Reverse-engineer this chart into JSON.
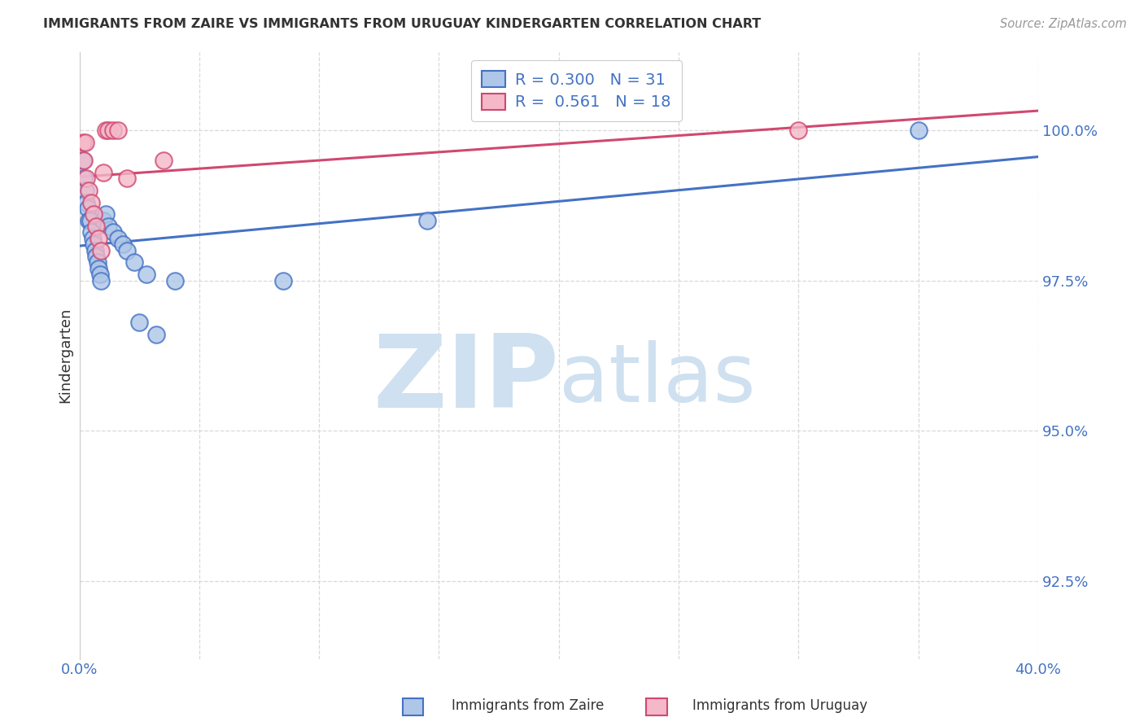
{
  "title": "IMMIGRANTS FROM ZAIRE VS IMMIGRANTS FROM URUGUAY KINDERGARTEN CORRELATION CHART",
  "source": "Source: ZipAtlas.com",
  "ylabel": "Kindergarten",
  "yticks": [
    92.5,
    95.0,
    97.5,
    100.0
  ],
  "ytick_labels": [
    "92.5%",
    "95.0%",
    "97.5%",
    "100.0%"
  ],
  "xmin": 0.0,
  "xmax": 40.0,
  "ymin": 91.2,
  "ymax": 101.3,
  "legend_blue_R": "0.300",
  "legend_blue_N": "31",
  "legend_pink_R": "0.561",
  "legend_pink_N": "18",
  "blue_fill": "#aec6e8",
  "blue_edge": "#4472c4",
  "pink_fill": "#f4b8c8",
  "pink_edge": "#d04870",
  "blue_line_color": "#4472c4",
  "pink_line_color": "#d04870",
  "blue_scatter_x": [
    0.15,
    0.2,
    0.25,
    0.3,
    0.35,
    0.4,
    0.45,
    0.5,
    0.55,
    0.6,
    0.65,
    0.7,
    0.75,
    0.8,
    0.85,
    0.9,
    1.0,
    1.1,
    1.2,
    1.4,
    1.6,
    1.8,
    2.0,
    2.3,
    2.8,
    4.0,
    8.5,
    14.5,
    2.5,
    3.2,
    35.0
  ],
  "blue_scatter_y": [
    99.5,
    99.2,
    99.0,
    98.8,
    98.7,
    98.5,
    98.5,
    98.3,
    98.2,
    98.1,
    98.0,
    97.9,
    97.8,
    97.7,
    97.6,
    97.5,
    98.5,
    98.6,
    98.4,
    98.3,
    98.2,
    98.1,
    98.0,
    97.8,
    97.6,
    97.5,
    97.5,
    98.5,
    96.8,
    96.6,
    100.0
  ],
  "pink_scatter_x": [
    0.15,
    0.2,
    0.3,
    0.4,
    0.5,
    0.6,
    0.7,
    0.8,
    0.9,
    1.0,
    1.1,
    1.2,
    1.4,
    1.6,
    2.0,
    3.5,
    30.0,
    0.25
  ],
  "pink_scatter_y": [
    99.8,
    99.5,
    99.2,
    99.0,
    98.8,
    98.6,
    98.4,
    98.2,
    98.0,
    99.3,
    100.0,
    100.0,
    100.0,
    100.0,
    99.2,
    99.5,
    100.0,
    99.8
  ],
  "watermark_zip": "ZIP",
  "watermark_atlas": "atlas",
  "watermark_color": "#cfe0f0",
  "background_color": "#ffffff",
  "grid_color": "#d8d8d8",
  "title_color": "#333333",
  "tick_label_color": "#4472c4",
  "ylabel_color": "#333333"
}
